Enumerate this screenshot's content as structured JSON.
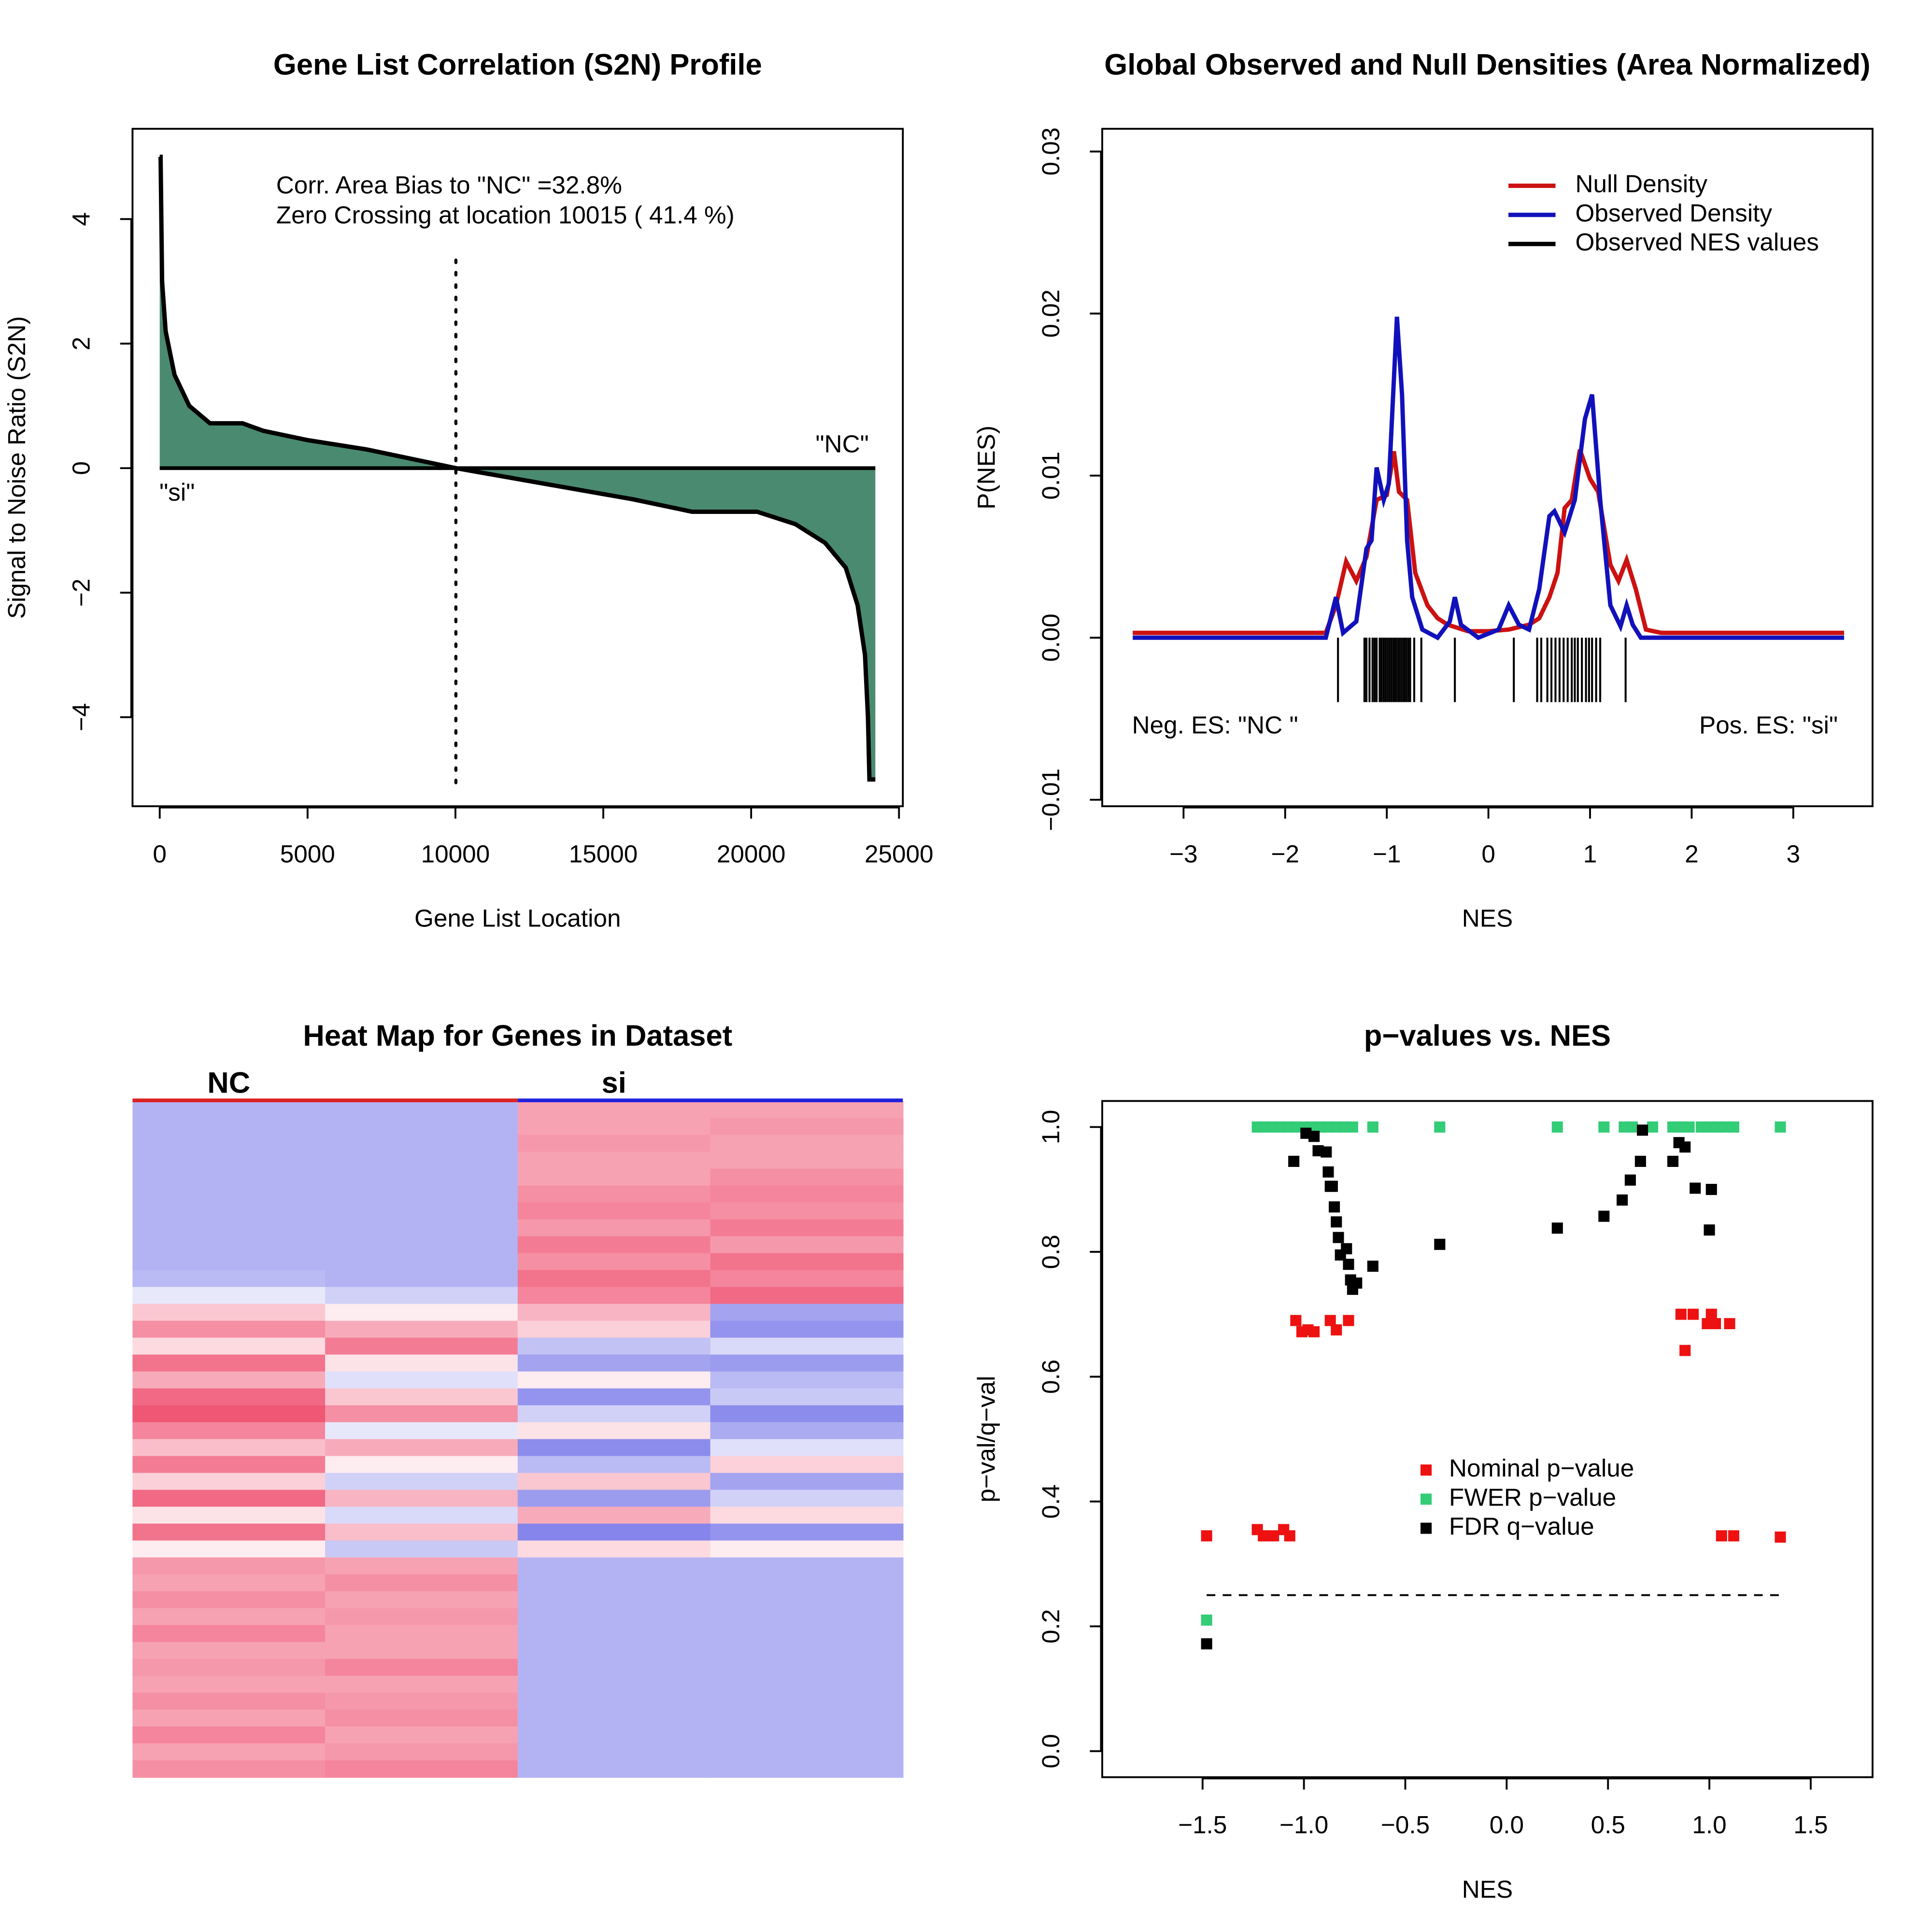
{
  "chart_data": [
    {
      "type": "area",
      "title": "Gene List Correlation (S2N) Profile",
      "xlabel": "Gene List Location",
      "ylabel": "Signal to Noise Ratio (S2N)",
      "x": [
        0,
        30,
        80,
        200,
        500,
        1000,
        1700,
        2800,
        3500,
        5000,
        7000,
        10015,
        13000,
        16000,
        18000,
        20200,
        21500,
        22500,
        23200,
        23600,
        23850,
        23950,
        24000,
        24200
      ],
      "values": [
        5,
        5,
        3,
        2.2,
        1.5,
        1.0,
        0.72,
        0.72,
        0.6,
        0.45,
        0.3,
        0,
        -0.25,
        -0.5,
        -0.7,
        -0.7,
        -0.9,
        -1.2,
        -1.6,
        -2.2,
        -3.0,
        -4.0,
        -5,
        -5
      ],
      "color": "#4a8a70",
      "zero_crossing": 10015,
      "annotations": [
        "Corr. Area Bias to \"NC\" =32.8%",
        "Zero Crossing at location  10015  ( 41.4  %)",
        "\"NC\"",
        "\"si\""
      ],
      "xlim": [
        -920,
        25130
      ],
      "xticks": [
        0,
        5000,
        10000,
        15000,
        20000,
        25000
      ],
      "ylim": [
        -5.43,
        5.45
      ],
      "yticks": [
        {
          "value": -4,
          "label": "−4"
        },
        {
          "value": -2,
          "label": "−2"
        },
        0,
        2,
        4
      ]
    },
    {
      "type": "line",
      "title": "Global Observed and Null Densities (Area Normalized)",
      "xlabel": "NES",
      "ylabel": "P(NES)",
      "series": [
        {
          "name": "Null Density",
          "color": "#cc1111",
          "x": [
            -3.5,
            -1.6,
            -1.5,
            -1.4,
            -1.3,
            -1.2,
            -1.1,
            -1.0,
            -0.93,
            -0.88,
            -0.8,
            -0.72,
            -0.6,
            -0.5,
            -0.4,
            -0.2,
            0,
            0.2,
            0.4,
            0.5,
            0.6,
            0.68,
            0.75,
            0.82,
            0.9,
            1.0,
            1.08,
            1.2,
            1.28,
            1.36,
            1.45,
            1.55,
            1.7,
            3.5
          ],
          "values": [
            0.0003,
            0.0003,
            0.002,
            0.0047,
            0.0035,
            0.005,
            0.0085,
            0.0088,
            0.0115,
            0.009,
            0.0085,
            0.004,
            0.002,
            0.0012,
            0.0008,
            0.0004,
            0.0004,
            0.0005,
            0.0008,
            0.0012,
            0.0025,
            0.004,
            0.008,
            0.0085,
            0.0116,
            0.0098,
            0.009,
            0.0045,
            0.0035,
            0.0048,
            0.003,
            0.0005,
            0.0003,
            0.0003
          ]
        },
        {
          "name": "Observed Density",
          "color": "#1111bb",
          "x": [
            -3.5,
            -1.6,
            -1.5,
            -1.43,
            -1.3,
            -1.2,
            -1.15,
            -1.1,
            -1.03,
            -0.98,
            -0.9,
            -0.85,
            -0.8,
            -0.75,
            -0.65,
            -0.5,
            -0.38,
            -0.33,
            -0.27,
            -0.1,
            0.1,
            0.2,
            0.3,
            0.4,
            0.5,
            0.6,
            0.65,
            0.75,
            0.85,
            0.95,
            1.02,
            1.1,
            1.2,
            1.3,
            1.36,
            1.42,
            1.5,
            3.5
          ],
          "values": [
            0,
            0,
            0.0025,
            0.0003,
            0.001,
            0.0055,
            0.006,
            0.0105,
            0.0085,
            0.0095,
            0.0198,
            0.015,
            0.006,
            0.0025,
            0.0005,
            0,
            0.001,
            0.0025,
            0.0008,
            0,
            0.0005,
            0.002,
            0.0008,
            0.0005,
            0.003,
            0.0075,
            0.0078,
            0.0065,
            0.0085,
            0.0135,
            0.015,
            0.0085,
            0.002,
            0.0007,
            0.002,
            0.0008,
            0,
            0
          ]
        }
      ],
      "rug": {
        "name": "Observed NES values",
        "color": "#000000",
        "values": [
          -1.48,
          -1.22,
          -1.2,
          -1.17,
          -1.14,
          -1.12,
          -1.1,
          -1.07,
          -1.05,
          -1.03,
          -1.01,
          -0.99,
          -0.97,
          -0.95,
          -0.93,
          -0.91,
          -0.89,
          -0.87,
          -0.85,
          -0.83,
          -0.81,
          -0.79,
          -0.77,
          -0.73,
          -0.66,
          -0.33,
          0.25,
          0.48,
          0.52,
          0.58,
          0.62,
          0.66,
          0.7,
          0.74,
          0.78,
          0.82,
          0.85,
          0.88,
          0.92,
          0.96,
          0.99,
          1.02,
          1.06,
          1.1,
          1.35
        ]
      },
      "annotations": [
        "Neg. ES: \"NC \"",
        "Pos. ES: \"si\""
      ],
      "xlim": [
        -3.8,
        3.78
      ],
      "xticks": [
        {
          "value": -3,
          "label": "−3"
        },
        {
          "value": -2,
          "label": "−2"
        },
        {
          "value": -1,
          "label": "−1"
        },
        0,
        1,
        2,
        3
      ],
      "ylim": [
        -0.0104,
        0.0314
      ],
      "yticks": [
        {
          "value": -0.01,
          "label": "−0.01"
        },
        {
          "value": 0,
          "label": "0.00"
        },
        {
          "value": 0.01,
          "label": "0.01"
        },
        {
          "value": 0.02,
          "label": "0.02"
        },
        {
          "value": 0.03,
          "label": "0.03"
        }
      ]
    },
    {
      "type": "heatmap",
      "title": "Heat Map for Genes in Dataset",
      "groups": [
        {
          "name": "NC",
          "color": "#dd2222"
        },
        {
          "name": "si",
          "color": "#2222dd"
        }
      ],
      "zlim": [
        -2,
        2
      ],
      "low_color": "#6666e6",
      "mid_color": "#ffffff",
      "high_color": "#ee4466",
      "matrix": [
        [
          -1,
          -1,
          1,
          1
        ],
        [
          -1,
          -1,
          1,
          1.1
        ],
        [
          -1,
          -1,
          1.1,
          1
        ],
        [
          -1,
          -1,
          1,
          1
        ],
        [
          -1,
          -1,
          1,
          1.2
        ],
        [
          -1,
          -1,
          1.2,
          1.3
        ],
        [
          -1,
          -1,
          1.3,
          1.2
        ],
        [
          -1,
          -1,
          1.1,
          1.4
        ],
        [
          -1,
          -1,
          1.4,
          1.1
        ],
        [
          -1,
          -1,
          1.2,
          1.5
        ],
        [
          -0.9,
          -1,
          1.5,
          1.3
        ],
        [
          -0.3,
          -0.6,
          1.3,
          1.6
        ],
        [
          0.6,
          0.2,
          0.8,
          -1.2
        ],
        [
          1.2,
          0.9,
          0.5,
          -1.4
        ],
        [
          0.4,
          1.4,
          -0.8,
          -0.5
        ],
        [
          1.5,
          0.3,
          -1.2,
          -1.3
        ],
        [
          0.9,
          -0.4,
          0.2,
          -0.9
        ],
        [
          1.6,
          0.6,
          -1.4,
          -0.7
        ],
        [
          1.8,
          1.2,
          -0.6,
          -1.5
        ],
        [
          1.3,
          -0.3,
          0.3,
          -1.1
        ],
        [
          0.7,
          0.9,
          -1.5,
          -0.4
        ],
        [
          1.4,
          0.2,
          -0.9,
          0.5
        ],
        [
          0.5,
          -0.6,
          0.6,
          -1.2
        ],
        [
          1.6,
          0.8,
          -1.3,
          -0.6
        ],
        [
          0.3,
          -0.5,
          0.9,
          0.4
        ],
        [
          1.5,
          0.7,
          -1.6,
          -1.4
        ],
        [
          0.2,
          -0.7,
          0.4,
          0.2
        ],
        [
          1.1,
          1,
          -1,
          -1
        ],
        [
          1,
          1.2,
          -1,
          -1
        ],
        [
          1.2,
          1,
          -1,
          -1
        ],
        [
          1,
          1.1,
          -1,
          -1
        ],
        [
          1.3,
          1,
          -1,
          -1
        ],
        [
          1,
          1,
          -1,
          -1
        ],
        [
          1.1,
          1.3,
          -1,
          -1
        ],
        [
          1,
          1,
          -1,
          -1
        ],
        [
          1.2,
          1.1,
          -1,
          -1
        ],
        [
          1,
          1.2,
          -1,
          -1
        ],
        [
          1.3,
          1,
          -1,
          -1
        ],
        [
          1,
          1.1,
          -1,
          -1
        ],
        [
          1.2,
          1.3,
          -1,
          -1
        ]
      ]
    },
    {
      "type": "scatter",
      "title": "p−values vs. NES",
      "xlabel": "NES",
      "ylabel": "p−val/q−val",
      "threshold": 0.25,
      "series": [
        {
          "name": "Nominal p−value",
          "color": "#ee1111",
          "x": [
            -1.48,
            -1.23,
            -1.2,
            -1.15,
            -1.1,
            -1.07,
            -1.04,
            -1.01,
            -0.98,
            -0.95,
            -0.87,
            -0.84,
            -0.78,
            0.86,
            0.88,
            0.92,
            0.99,
            1.01,
            1.03,
            1.06,
            1.1,
            1.12,
            1.35
          ],
          "values": [
            0.345,
            0.355,
            0.345,
            0.345,
            0.355,
            0.345,
            0.69,
            0.672,
            0.675,
            0.672,
            0.69,
            0.675,
            0.69,
            0.7,
            0.642,
            0.7,
            0.685,
            0.7,
            0.685,
            0.345,
            0.685,
            0.345,
            0.343
          ]
        },
        {
          "name": "FWER p−value",
          "color": "#33cc77",
          "x": [
            -1.48,
            -1.23,
            -1.2,
            -1.16,
            -1.12,
            -1.08,
            -1.04,
            -1.0,
            -0.96,
            -0.92,
            -0.88,
            -0.84,
            -0.8,
            -0.76,
            -0.66,
            -0.33,
            0.25,
            0.48,
            0.58,
            0.62,
            0.72,
            0.82,
            0.86,
            0.9,
            0.96,
            1.0,
            1.04,
            1.08,
            1.12,
            1.35
          ],
          "values": [
            0.21,
            1,
            1,
            1,
            1,
            1,
            1,
            1,
            1,
            1,
            1,
            1,
            1,
            1,
            1,
            1,
            1,
            1,
            1,
            1,
            1,
            1,
            1,
            1,
            1,
            1,
            1,
            1,
            1,
            1
          ]
        },
        {
          "name": "FDR q−value",
          "color": "#000000",
          "x": [
            -1.48,
            -1.05,
            -0.99,
            -0.95,
            -0.93,
            -0.89,
            -0.88,
            -0.87,
            -0.86,
            -0.85,
            -0.84,
            -0.83,
            -0.82,
            -0.79,
            -0.78,
            -0.77,
            -0.76,
            -0.74,
            -0.66,
            -0.33,
            0.25,
            0.48,
            0.57,
            0.61,
            0.66,
            0.67,
            0.82,
            0.85,
            0.88,
            0.93,
            1.0,
            1.01
          ],
          "values": [
            0.172,
            0.945,
            0.99,
            0.985,
            0.962,
            0.96,
            0.928,
            0.905,
            0.905,
            0.872,
            0.848,
            0.823,
            0.795,
            0.805,
            0.78,
            0.755,
            0.74,
            0.75,
            0.777,
            0.812,
            0.838,
            0.857,
            0.883,
            0.915,
            0.945,
            0.995,
            0.945,
            0.975,
            0.968,
            0.902,
            0.835,
            0.9
          ]
        }
      ],
      "xlim": [
        -1.995,
        1.805
      ],
      "xticks": [
        {
          "value": -1.5,
          "label": "−1.5"
        },
        {
          "value": -1,
          "label": "−1.0"
        },
        {
          "value": -0.5,
          "label": "−0.5"
        },
        {
          "value": 0,
          "label": "0.0"
        },
        0.5,
        {
          "value": 1,
          "label": "1.0"
        },
        1.5
      ],
      "ylim": [
        -0.0417,
        1.0417
      ],
      "yticks": [
        {
          "value": 0,
          "label": "0.0"
        },
        0.2,
        0.4,
        0.6,
        0.8,
        {
          "value": 1,
          "label": "1.0"
        }
      ]
    }
  ]
}
